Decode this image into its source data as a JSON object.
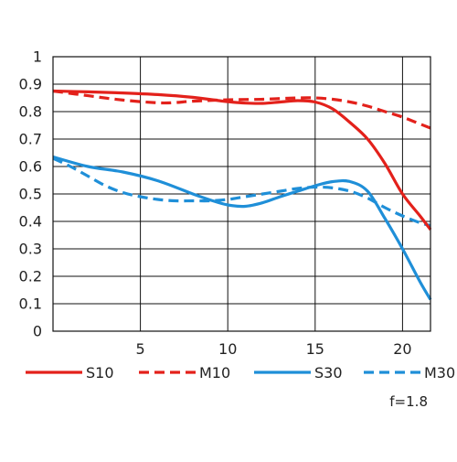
{
  "chart_data": {
    "type": "line",
    "x_ticks": [
      5,
      10,
      15,
      20
    ],
    "y_ticks": [
      "0",
      "0.1",
      "0.2",
      "0.3",
      "0.4",
      "0.5",
      "0.6",
      "0.7",
      "0.8",
      "0.9",
      "1"
    ],
    "xlim": [
      0,
      21.6
    ],
    "ylim": [
      0,
      1
    ],
    "grid": true,
    "legend_position": "bottom",
    "annotation": "f=1.8",
    "series": [
      {
        "name": "S10",
        "color": "#e3211b",
        "style": "solid",
        "x": [
          0,
          2,
          4,
          6,
          8,
          9.5,
          10,
          11,
          12,
          13,
          14,
          15,
          16,
          17,
          18,
          19,
          20,
          21,
          21.6
        ],
        "y": [
          0.875,
          0.872,
          0.868,
          0.862,
          0.852,
          0.84,
          0.836,
          0.831,
          0.83,
          0.835,
          0.84,
          0.835,
          0.81,
          0.76,
          0.7,
          0.61,
          0.5,
          0.42,
          0.37
        ]
      },
      {
        "name": "M10",
        "color": "#e3211b",
        "style": "dashed",
        "x": [
          0,
          2,
          4,
          6,
          7,
          8,
          10,
          12,
          14,
          15,
          16,
          17,
          18,
          19,
          20,
          21,
          21.6
        ],
        "y": [
          0.875,
          0.858,
          0.842,
          0.832,
          0.833,
          0.838,
          0.843,
          0.845,
          0.85,
          0.85,
          0.845,
          0.835,
          0.82,
          0.8,
          0.78,
          0.755,
          0.74
        ]
      },
      {
        "name": "S30",
        "color": "#1f8fd8",
        "style": "solid",
        "x": [
          0,
          2,
          4,
          6,
          8,
          9,
          10,
          11,
          12,
          13,
          14,
          15,
          16,
          17,
          18,
          19,
          20,
          21,
          21.6
        ],
        "y": [
          0.635,
          0.6,
          0.58,
          0.548,
          0.5,
          0.478,
          0.46,
          0.455,
          0.468,
          0.49,
          0.51,
          0.53,
          0.545,
          0.545,
          0.51,
          0.41,
          0.3,
          0.18,
          0.115
        ]
      },
      {
        "name": "M30",
        "color": "#1f8fd8",
        "style": "dashed",
        "x": [
          0,
          1,
          2,
          3,
          4,
          5,
          6,
          7,
          8,
          9,
          10,
          11,
          12,
          13,
          14,
          15,
          16,
          17,
          18,
          19,
          20,
          21,
          21.6
        ],
        "y": [
          0.63,
          0.6,
          0.565,
          0.53,
          0.505,
          0.49,
          0.48,
          0.475,
          0.475,
          0.475,
          0.48,
          0.49,
          0.5,
          0.51,
          0.52,
          0.525,
          0.522,
          0.51,
          0.485,
          0.45,
          0.42,
          0.395,
          0.385
        ]
      }
    ]
  }
}
